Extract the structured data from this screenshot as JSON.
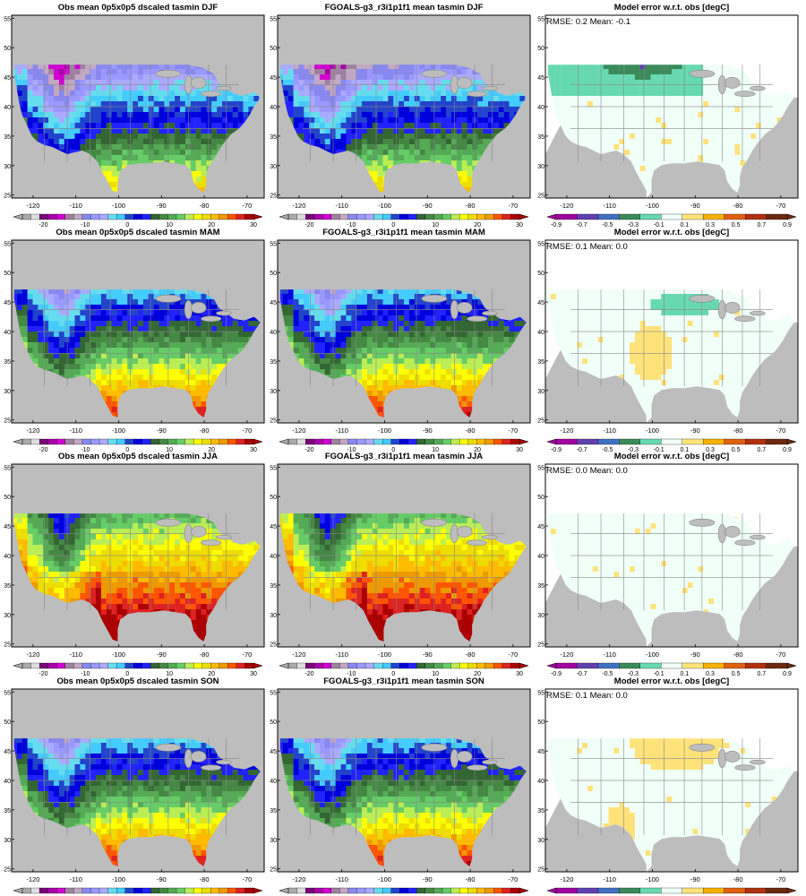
{
  "chart_data": {
    "type": "heatmap",
    "rows": [
      "DJF",
      "MAM",
      "JJA",
      "SON"
    ],
    "columns": [
      "obs",
      "model",
      "error"
    ],
    "axes": {
      "xticks": [
        -120,
        -110,
        -100,
        -90,
        -80,
        -70
      ],
      "xtick_labels": [
        "-120",
        "-110",
        "-100",
        "-90",
        "-80",
        "-70"
      ],
      "xlim": [
        -125,
        -66
      ],
      "yticks": [
        25,
        30,
        35,
        40,
        45,
        50,
        55
      ],
      "ytick_labels": [
        "25",
        "30",
        "35",
        "40",
        "45",
        "50",
        "55"
      ],
      "ylim": [
        24.5,
        55.5
      ]
    },
    "colorbars": {
      "temperature": {
        "tick_values": [
          -20,
          -10,
          0,
          10,
          20,
          30
        ],
        "tick_labels": [
          "-20",
          "-10",
          "0",
          "10",
          "20",
          "30"
        ],
        "range": [
          -25,
          30
        ],
        "colors": [
          "#aaaaaa",
          "#dddddd",
          "#7a007a",
          "#a800a8",
          "#d000d0",
          "#a080a0",
          "#c2a8c2",
          "#8888ee",
          "#9999ff",
          "#aaaaff",
          "#66ddee",
          "#44ccff",
          "#2244cc",
          "#0000dd",
          "#2222ff",
          "#336633",
          "#448844",
          "#55aa55",
          "#66cc66",
          "#bbee55",
          "#ffff00",
          "#eedd00",
          "#ffbb00",
          "#ee9900",
          "#ff5500",
          "#dd2222",
          "#aa0000"
        ]
      },
      "error": {
        "tick_values": [
          -0.9,
          -0.7,
          -0.5,
          -0.3,
          -0.1,
          0.1,
          0.3,
          0.5,
          0.7,
          0.9
        ],
        "tick_labels": [
          "-0.9",
          "-0.7",
          "-0.5",
          "-0.3",
          "-0.1",
          "0.1",
          "0.3",
          "0.5",
          "0.7",
          "0.9"
        ],
        "range": [
          -0.9,
          0.9
        ],
        "colors": [
          "#a000a0",
          "#6040b0",
          "#4070c0",
          "#3a8a5a",
          "#66d9b0",
          "#f0fff8",
          "#ffe27a",
          "#f5b000",
          "#e06010",
          "#b03010",
          "#6a2a10"
        ]
      }
    },
    "panels": [
      [
        {
          "title": "Obs mean 0p5x0p5 dscaled tasmin DJF",
          "stats": ""
        },
        {
          "title": "FGOALS-g3_r3i1p1f1 mean tasmin DJF",
          "stats": ""
        },
        {
          "title": "Model error w.r.t. obs [degC]",
          "stats": "RMSE: 0.2  Mean: -0.1"
        }
      ],
      [
        {
          "title": "Obs mean 0p5x0p5 dscaled tasmin MAM",
          "stats": ""
        },
        {
          "title": "FGOALS-g3_r3i1p1f1 mean tasmin MAM",
          "stats": ""
        },
        {
          "title": "Model error w.r.t. obs [degC]",
          "stats": "RMSE: 0.1  Mean: 0.0"
        }
      ],
      [
        {
          "title": "Obs mean 0p5x0p5 dscaled tasmin JJA",
          "stats": ""
        },
        {
          "title": "FGOALS-g3_r3i1p1f1 mean tasmin JJA",
          "stats": ""
        },
        {
          "title": "Model error w.r.t. obs [degC]",
          "stats": "RMSE: 0.0  Mean: 0.0"
        }
      ],
      [
        {
          "title": "Obs mean 0p5x0p5 dscaled tasmin SON",
          "stats": ""
        },
        {
          "title": "FGOALS-g3_r3i1p1f1 mean tasmin SON",
          "stats": ""
        },
        {
          "title": "Model error w.r.t. obs [degC]",
          "stats": "RMSE: 0.1  Mean: 0.0"
        }
      ]
    ]
  },
  "colors": {
    "ocean": "#bdbdbd",
    "frame": "#000000",
    "border": "#888888"
  }
}
